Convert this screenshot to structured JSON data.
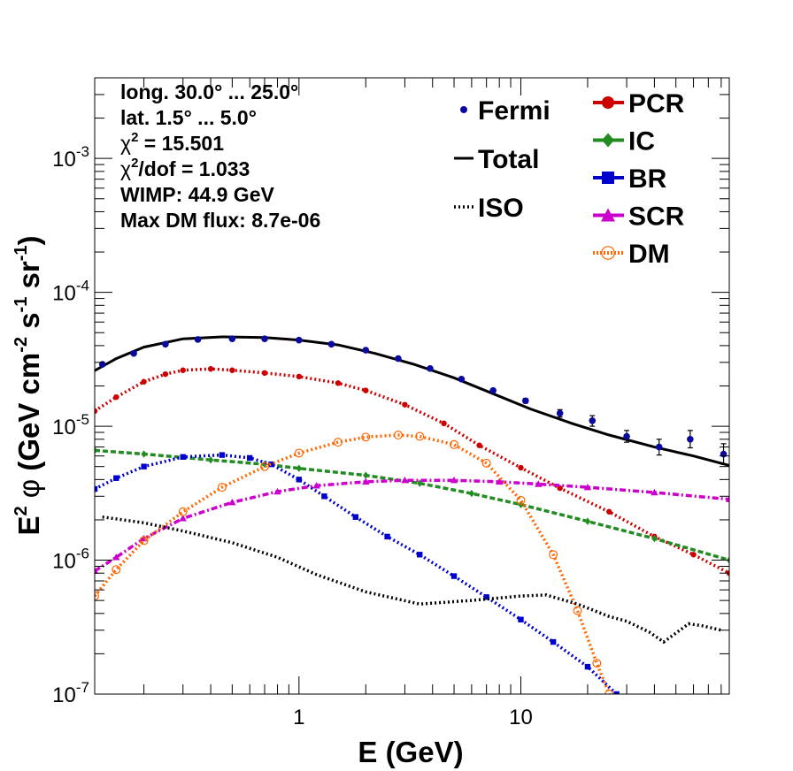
{
  "chart_data": {
    "type": "line",
    "xlabel": "E (GeV)",
    "ylabel_parts": {
      "base": "E",
      "base_sup": "2",
      "phi": "φ",
      "unit_open": "(GeV cm",
      "unit_sup1": "-2",
      "unit_s": "s",
      "unit_sup2": "-1",
      "unit_sr": "sr",
      "unit_sup3": "-1",
      "unit_close": ")"
    },
    "x_scale": "log",
    "y_scale": "log",
    "xlim": [
      0.12,
      87
    ],
    "ylim": [
      1e-07,
      0.004
    ],
    "x_tick_labels": [
      {
        "value": 1,
        "label": "1"
      },
      {
        "value": 10,
        "label": "10"
      }
    ],
    "y_tick_labels": [
      {
        "value": 1e-07,
        "mant": "10",
        "exp": "-7"
      },
      {
        "value": 1e-06,
        "mant": "10",
        "exp": "-6"
      },
      {
        "value": 1e-05,
        "mant": "10",
        "exp": "-5"
      },
      {
        "value": 0.0001,
        "mant": "10",
        "exp": "-4"
      },
      {
        "value": 0.001,
        "mant": "10",
        "exp": "-3"
      }
    ],
    "info_box": {
      "long": "long. 30.0° ... 25.0°",
      "lat": "lat. 1.5° ... 5.0°",
      "chi2_a": "χ",
      "chi2_sup": "2",
      "chi2_b": " = 15.501",
      "chidof_a": "χ",
      "chidof_sup": "2",
      "chidof_b": "/dof = 1.033",
      "wimp": "WIMP: 44.9 GeV",
      "maxdm": "Max DM flux: 8.7e-06"
    },
    "legend_left": [
      {
        "name": "Fermi",
        "symbol": "dot",
        "color": "#0a0aa0"
      },
      {
        "name": "Total",
        "symbol": "line",
        "color": "#000000"
      },
      {
        "name": "ISO",
        "symbol": "dotted",
        "color": "#000000"
      }
    ],
    "legend_right": [
      {
        "name": "PCR",
        "symbol": "circle",
        "color": "#cc0000"
      },
      {
        "name": "IC",
        "symbol": "diamond",
        "color": "#228b22"
      },
      {
        "name": "BR",
        "symbol": "square",
        "color": "#0000cc"
      },
      {
        "name": "SCR",
        "symbol": "triangle",
        "color": "#cc00cc"
      },
      {
        "name": "DM",
        "symbol": "open-circle",
        "color": "#ff6600"
      }
    ],
    "fermi": {
      "x": [
        0.13,
        0.18,
        0.25,
        0.35,
        0.5,
        0.7,
        1.0,
        1.4,
        2.0,
        2.8,
        3.9,
        5.4,
        7.5,
        10.5,
        15,
        21,
        30,
        42,
        58,
        82
      ],
      "y": [
        2.9e-05,
        3.5e-05,
        4.1e-05,
        4.45e-05,
        4.5e-05,
        4.5e-05,
        4.4e-05,
        4.1e-05,
        3.7e-05,
        3.2e-05,
        2.7e-05,
        2.25e-05,
        1.85e-05,
        1.55e-05,
        1.25e-05,
        1.1e-05,
        8.4e-06,
        7e-06,
        8e-06,
        6.2e-06
      ],
      "err_up": [
        0,
        0,
        0,
        0,
        0,
        0,
        0,
        0,
        0,
        0,
        0,
        0,
        0,
        6e-07,
        8e-07,
        1e-06,
        9e-07,
        1e-06,
        1.3e-06,
        1.2e-06
      ],
      "err_dn": [
        0,
        0,
        0,
        0,
        0,
        0,
        0,
        0,
        0,
        0,
        0,
        0,
        0,
        6e-07,
        8e-07,
        1e-06,
        8e-07,
        9e-07,
        1.1e-06,
        1e-06
      ]
    },
    "series": [
      {
        "name": "Total",
        "color": "#000000",
        "style": "solid",
        "x": [
          0.12,
          0.15,
          0.2,
          0.3,
          0.45,
          0.7,
          1.0,
          1.5,
          2.2,
          3.3,
          5,
          7.5,
          11,
          17,
          25,
          40,
          60,
          87
        ],
        "y": [
          2.6e-05,
          3.2e-05,
          3.9e-05,
          4.5e-05,
          4.65e-05,
          4.6e-05,
          4.4e-05,
          4.05e-05,
          3.5e-05,
          2.9e-05,
          2.3e-05,
          1.75e-05,
          1.35e-05,
          1.05e-05,
          8.6e-06,
          7e-06,
          6e-06,
          5.1e-06
        ]
      },
      {
        "name": "PCR",
        "color": "#cc0000",
        "style": "dotted",
        "x": [
          0.12,
          0.15,
          0.2,
          0.25,
          0.3,
          0.4,
          0.5,
          0.7,
          1.0,
          1.5,
          2.0,
          3.0,
          4.5,
          6.5,
          10,
          15,
          25,
          40,
          60,
          87
        ],
        "y": [
          1.3e-05,
          1.65e-05,
          2.15e-05,
          2.45e-05,
          2.62e-05,
          2.68e-05,
          2.62e-05,
          2.5e-05,
          2.35e-05,
          2.1e-05,
          1.85e-05,
          1.45e-05,
          1.05e-05,
          7.2e-06,
          4.9e-06,
          3.45e-06,
          2.3e-06,
          1.5e-06,
          1.1e-06,
          8e-07
        ]
      },
      {
        "name": "IC",
        "color": "#228b22",
        "style": "dashed",
        "x": [
          0.12,
          0.2,
          0.4,
          0.7,
          1.0,
          2.0,
          3.5,
          6.0,
          10,
          20,
          40,
          87
        ],
        "y": [
          6.6e-06,
          6.2e-06,
          5.6e-06,
          5.2e-06,
          4.85e-06,
          4.3e-06,
          3.75e-06,
          3.15e-06,
          2.6e-06,
          1.95e-06,
          1.45e-06,
          1e-06
        ]
      },
      {
        "name": "BR",
        "color": "#0000cc",
        "style": "dotted",
        "x": [
          0.12,
          0.15,
          0.2,
          0.3,
          0.45,
          0.6,
          0.75,
          1.0,
          1.3,
          1.8,
          2.5,
          3.5,
          5.0,
          7.0,
          10,
          14,
          20,
          27
        ],
        "y": [
          3.4e-06,
          4.1e-06,
          5e-06,
          5.9e-06,
          6.1e-06,
          5.8e-06,
          5.2e-06,
          4e-06,
          3e-06,
          2.1e-06,
          1.5e-06,
          1.1e-06,
          7.6e-07,
          5.3e-07,
          3.6e-07,
          2.45e-07,
          1.6e-07,
          1e-07
        ]
      },
      {
        "name": "SCR",
        "color": "#cc00cc",
        "style": "dashdot",
        "x": [
          0.12,
          0.15,
          0.2,
          0.3,
          0.5,
          0.8,
          1.2,
          2.0,
          3.0,
          5.0,
          8,
          12,
          20,
          40,
          87
        ],
        "y": [
          8.3e-07,
          1.05e-06,
          1.45e-06,
          2.05e-06,
          2.7e-06,
          3.25e-06,
          3.6e-06,
          3.85e-06,
          3.95e-06,
          3.95e-06,
          3.85e-06,
          3.7e-06,
          3.5e-06,
          3.2e-06,
          2.85e-06
        ]
      },
      {
        "name": "DM",
        "color": "#ff6600",
        "style": "dotted",
        "x": [
          0.12,
          0.15,
          0.2,
          0.3,
          0.45,
          0.7,
          1.0,
          1.5,
          2.0,
          2.8,
          3.5,
          5.0,
          7.0,
          10,
          14,
          18,
          22,
          25
        ],
        "y": [
          5.4e-07,
          8.5e-07,
          1.4e-06,
          2.3e-06,
          3.5e-06,
          5e-06,
          6.3e-06,
          7.6e-06,
          8.3e-06,
          8.6e-06,
          8.4e-06,
          7.3e-06,
          5.3e-06,
          2.8e-06,
          1.1e-06,
          4.2e-07,
          1.7e-07,
          1e-07
        ]
      },
      {
        "name": "ISO",
        "color": "#000000",
        "style": "dotted",
        "x": [
          0.13,
          0.2,
          0.3,
          0.5,
          0.8,
          1.2,
          2.0,
          3.5,
          6.0,
          10,
          13,
          18,
          25,
          30,
          38,
          44,
          50,
          57,
          65,
          80
        ],
        "y": [
          2.1e-06,
          1.9e-06,
          1.65e-06,
          1.35e-06,
          1.05e-06,
          7.8e-07,
          5.8e-07,
          4.7e-07,
          5e-07,
          5.4e-07,
          5.5e-07,
          4.7e-07,
          3.8e-07,
          3.5e-07,
          2.9e-07,
          2.45e-07,
          2.85e-07,
          3.35e-07,
          3.25e-07,
          3e-07
        ]
      }
    ]
  }
}
